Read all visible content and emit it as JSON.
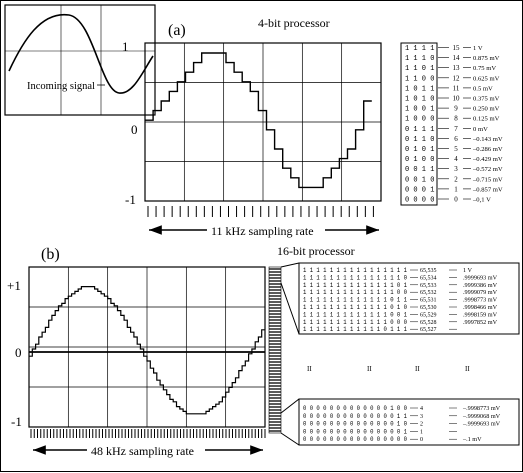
{
  "panel_a": {
    "label": "(a)",
    "title": "4-bit processor",
    "inset_label": "Incoming signal",
    "y_top": "1",
    "y_mid": "0",
    "y_bot": "-1",
    "sampling": "11 kHz sampling rate",
    "table": [
      {
        "bits": "1 1 1 1",
        "index": "15",
        "value": "1 V"
      },
      {
        "bits": "1 1 1 0",
        "index": "14",
        "value": "0.875 mV"
      },
      {
        "bits": "1 1 0 1",
        "index": "13",
        "value": "0.75 mV"
      },
      {
        "bits": "1 1 0 0",
        "index": "12",
        "value": "0.625 mV"
      },
      {
        "bits": "1 0 1 1",
        "index": "11",
        "value": "0.5 mV"
      },
      {
        "bits": "1 0 1 0",
        "index": "10",
        "value": "0.375 mV"
      },
      {
        "bits": "1 0 0 1",
        "index": "9",
        "value": "0.250 mV"
      },
      {
        "bits": "1 0 0 0",
        "index": "8",
        "value": "0.125 mV"
      },
      {
        "bits": "0 1 1 1",
        "index": "7",
        "value": "0 mV"
      },
      {
        "bits": "0 1 1 0",
        "index": "6",
        "value": "–0.143 mV"
      },
      {
        "bits": "0 1 0 1",
        "index": "5",
        "value": "–0.286 mV"
      },
      {
        "bits": "0 1 0 0",
        "index": "4",
        "value": "–0.429 mV"
      },
      {
        "bits": "0 0 1 1",
        "index": "3",
        "value": "–0.572 mV"
      },
      {
        "bits": "0 0 1 0",
        "index": "2",
        "value": "–0.715 mV"
      },
      {
        "bits": "0 0 0 1",
        "index": "1",
        "value": "–0.857 mV"
      },
      {
        "bits": "0 0 0 0",
        "index": "0",
        "value": "–0,1 V"
      }
    ]
  },
  "panel_b": {
    "label": "(b)",
    "title": "16-bit processor",
    "y_top": "+1",
    "y_mid": "0",
    "y_bot": "-1",
    "sampling": "48 kHz sampling rate",
    "table_top": [
      {
        "bits": "1 1 1 1 1 1 1 1 1 1 1 1 1 1 1 1",
        "index": "65,535",
        "value": "1 V"
      },
      {
        "bits": "1 1 1 1 1 1 1 1 1 1 1 1 1 1 1 0",
        "index": "65,534",
        "value": ".9999693 mV"
      },
      {
        "bits": "1 1 1 1 1 1 1 1 1 1 1 1 1 1 0 1",
        "index": "65,533",
        "value": ".9999386 mV"
      },
      {
        "bits": "1 1 1 1 1 1 1 1 1 1 1 1 1 1 0 0",
        "index": "65,532",
        "value": ".9999079 mV"
      },
      {
        "bits": "1 1 1 1 1 1 1 1 1 1 1 1 1 0 1 1",
        "index": "65,531",
        "value": ".9998773 mV"
      },
      {
        "bits": "1 1 1 1 1 1 1 1 1 1 1 1 1 0 1 0",
        "index": "65,530",
        "value": ".9998466 mV"
      },
      {
        "bits": "1 1 1 1 1 1 1 1 1 1 1 1 1 0 0 1",
        "index": "65,529",
        "value": ".9998159 mV"
      },
      {
        "bits": "1 1 1 1 1 1 1 1 1 1 1 1 1 0 0 0",
        "index": "65,528",
        "value": ".9997852 mV"
      },
      {
        "bits": "1 1 1 1 1 1 1 1 1 1 1 1 0 1 1 1",
        "index": "65,527",
        "value": ""
      }
    ],
    "ellipsis_marks": [
      "II",
      "II",
      "II",
      "II"
    ],
    "table_bottom": [
      {
        "bits": "0 0 0 0 0 0 0 0 0 0 0 0 0 1 0 0",
        "index": "4",
        "value": "–.9998773 mV"
      },
      {
        "bits": "0 0 0 0 0 0 0 0 0 0 0 0 0 0 1 1",
        "index": "3",
        "value": "–.9999068 mV"
      },
      {
        "bits": "0 0 0 0 0 0 0 0 0 0 0 0 0 0 1 0",
        "index": "2",
        "value": "–.9999693 mV"
      },
      {
        "bits": "0 0 0 0 0 0 0 0 0 0 0 0 0 0 0 1",
        "index": "1",
        "value": ""
      },
      {
        "bits": "0 0 0 0 0 0 0 0 0 0 0 0 0 0 0 0",
        "index": "0",
        "value": "–.1 mV"
      }
    ]
  }
}
